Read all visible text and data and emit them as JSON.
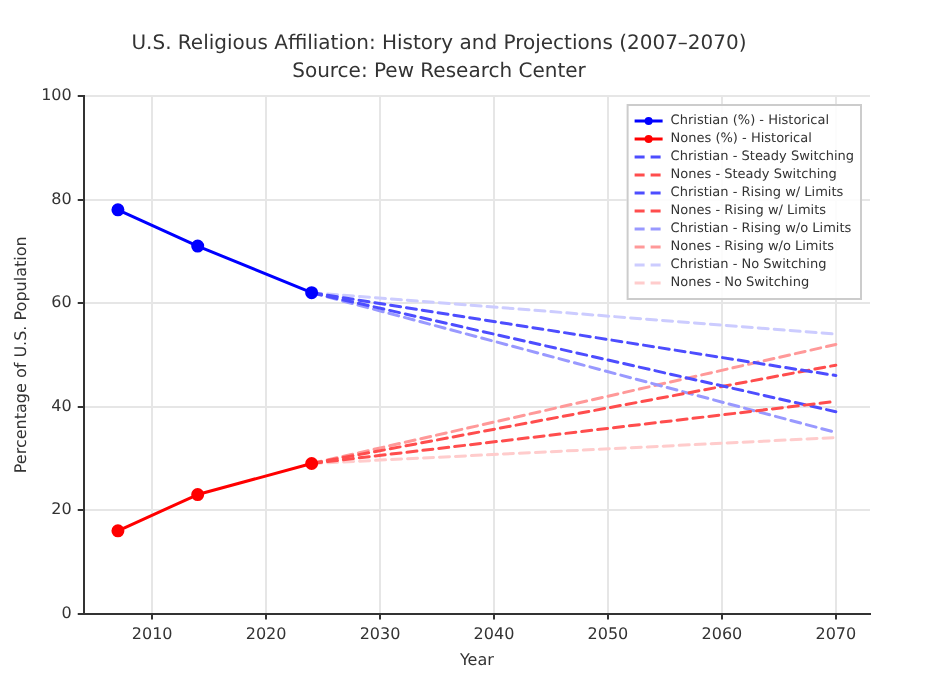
{
  "chart_data": {
    "type": "line",
    "title": "U.S. Religious Affiliation: History and Projections (2007–2070)",
    "subtitle": "Source: Pew Research Center",
    "xlabel": "Year",
    "ylabel": "Percentage of U.S. Population",
    "xlim": [
      2004,
      2073
    ],
    "xticks": [
      2010,
      2020,
      2030,
      2040,
      2050,
      2060,
      2070
    ],
    "ylim": [
      0,
      100
    ],
    "yticks": [
      0,
      20,
      40,
      60,
      80,
      100
    ],
    "grid": true,
    "legend": "top right",
    "series": [
      {
        "name": "Christian (%) - Historical",
        "color": "#0000ff",
        "x": [
          2007,
          2014,
          2024
        ],
        "values": [
          78,
          71,
          62
        ],
        "marker": "circle",
        "line_style": "solid"
      },
      {
        "name": "Nones (%) - Historical",
        "color": "#ff0000",
        "x": [
          2007,
          2014,
          2024
        ],
        "values": [
          16,
          23,
          29
        ],
        "marker": "circle",
        "line_style": "solid"
      },
      {
        "name": "Christian - Steady Switching",
        "color": "#4d4dff",
        "x": [
          2024,
          2070
        ],
        "values": [
          62,
          46
        ],
        "marker": "none",
        "line_style": "dashed"
      },
      {
        "name": "Nones - Steady Switching",
        "color": "#ff4d4d",
        "x": [
          2024,
          2070
        ],
        "values": [
          29,
          41
        ],
        "marker": "none",
        "line_style": "dashed"
      },
      {
        "name": "Christian - Rising w/ Limits",
        "color": "#4d4dff",
        "x": [
          2024,
          2070
        ],
        "values": [
          62,
          39
        ],
        "marker": "none",
        "line_style": "dashed"
      },
      {
        "name": "Nones - Rising w/ Limits",
        "color": "#ff4d4d",
        "x": [
          2024,
          2070
        ],
        "values": [
          29,
          48
        ],
        "marker": "none",
        "line_style": "dashed"
      },
      {
        "name": "Christian - Rising w/o Limits",
        "color": "#9999ff",
        "x": [
          2024,
          2070
        ],
        "values": [
          62,
          35
        ],
        "marker": "none",
        "line_style": "dashed"
      },
      {
        "name": "Nones - Rising w/o Limits",
        "color": "#ff9999",
        "x": [
          2024,
          2070
        ],
        "values": [
          29,
          52
        ],
        "marker": "none",
        "line_style": "dashed"
      },
      {
        "name": "Christian - No Switching",
        "color": "#ccccff",
        "x": [
          2024,
          2070
        ],
        "values": [
          62,
          54
        ],
        "marker": "none",
        "line_style": "dashed"
      },
      {
        "name": "Nones - No Switching",
        "color": "#ffcccc",
        "x": [
          2024,
          2070
        ],
        "values": [
          29,
          34
        ],
        "marker": "none",
        "line_style": "dashed"
      }
    ]
  }
}
